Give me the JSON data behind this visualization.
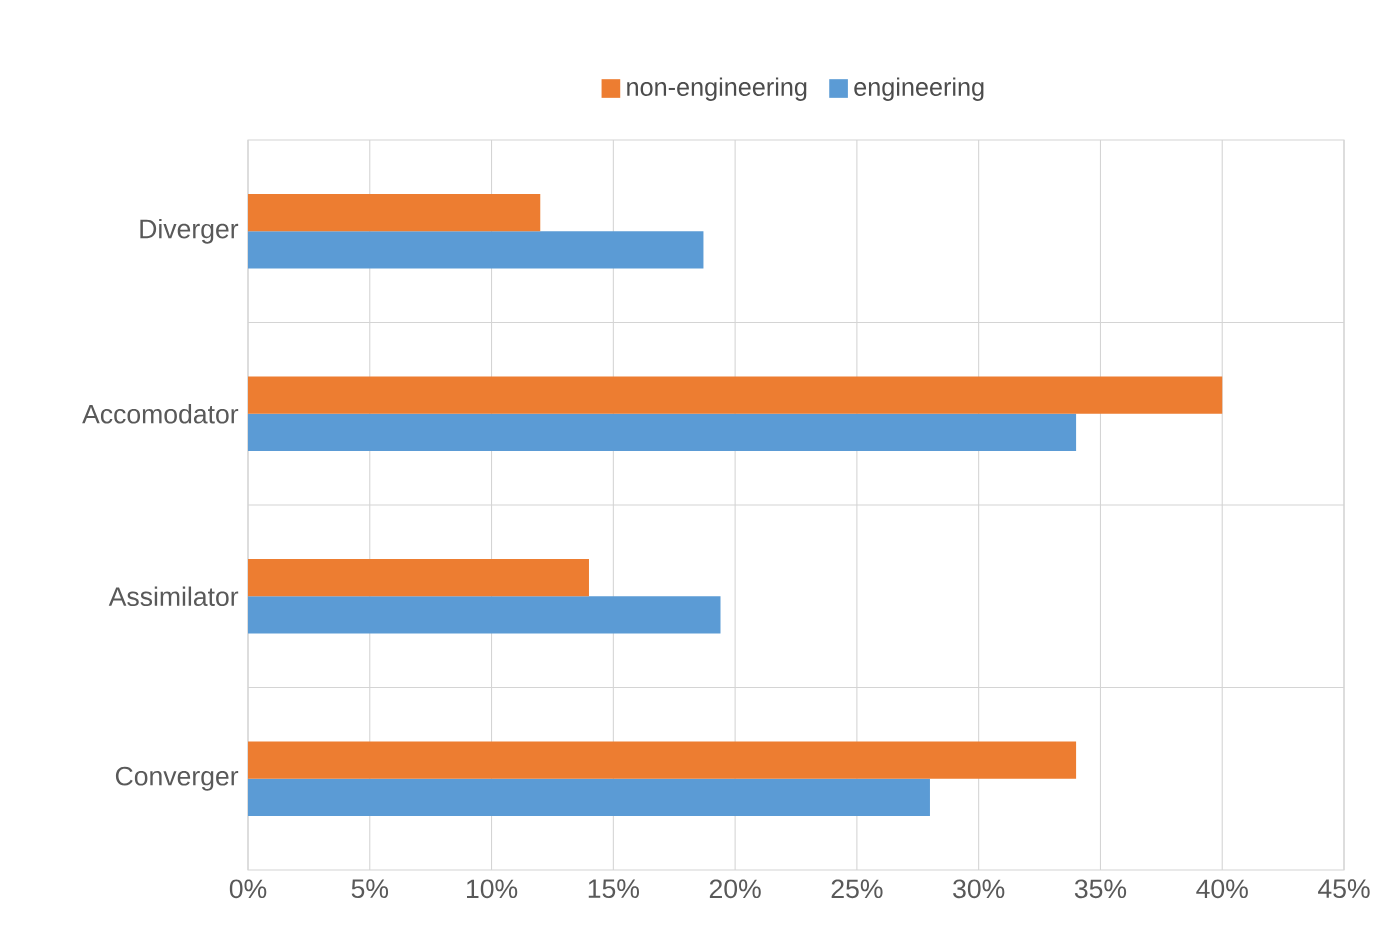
{
  "chart_data": {
    "type": "bar",
    "orientation": "horizontal",
    "categories": [
      "Diverger",
      "Accomodator",
      "Assimilator",
      "Converger"
    ],
    "series": [
      {
        "name": "engineering",
        "color": "#5b9bd5",
        "values": [
          18.7,
          34,
          19.4,
          28
        ]
      },
      {
        "name": "non-engineering",
        "color": "#ed7d31",
        "values": [
          12,
          40,
          14,
          34
        ]
      }
    ],
    "xlim": [
      0,
      45
    ],
    "xticks": [
      {
        "value": 0,
        "label": "0%"
      },
      {
        "value": 5,
        "label": "5%"
      },
      {
        "value": 10,
        "label": "10%"
      },
      {
        "value": 15,
        "label": "15%"
      },
      {
        "value": 20,
        "label": "20%"
      },
      {
        "value": 25,
        "label": "25%"
      },
      {
        "value": 30,
        "label": "30%"
      },
      {
        "value": 35,
        "label": "35%"
      },
      {
        "value": 40,
        "label": "40%"
      },
      {
        "value": 45,
        "label": "45%"
      }
    ],
    "grid": true,
    "legend": "top"
  }
}
